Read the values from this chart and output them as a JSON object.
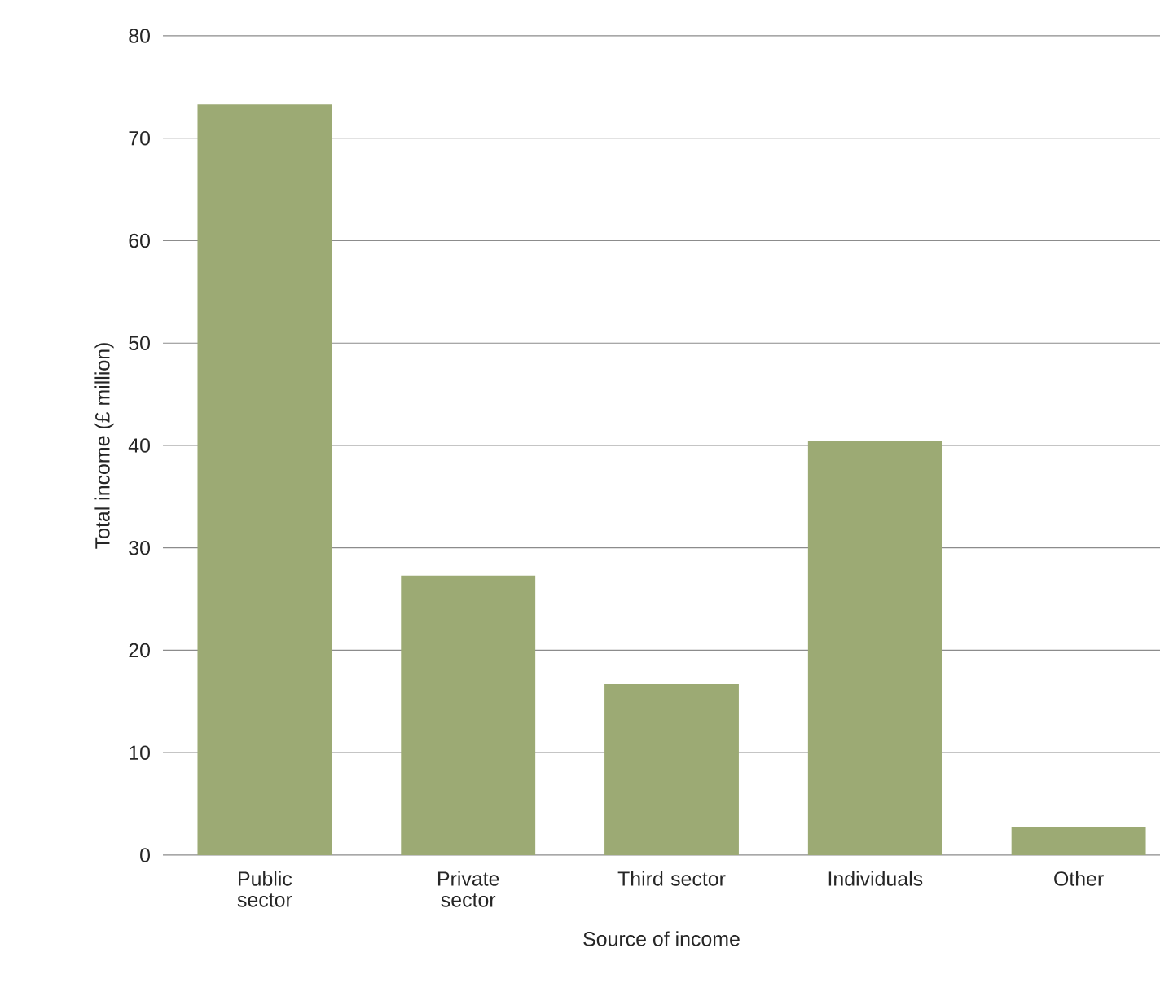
{
  "chart_data": {
    "type": "bar",
    "xlabel": "Source of income",
    "ylabel": "Total income (£ million)",
    "categories": [
      "Public sector",
      "Private sector",
      "Third sector",
      "Individuals",
      "Other"
    ],
    "values": [
      73.3,
      27.3,
      16.7,
      40.4,
      2.7
    ],
    "color": "#9caa74",
    "ylim": [
      0,
      80
    ],
    "yticks": [
      0,
      10,
      20,
      30,
      40,
      50,
      60,
      70,
      80
    ],
    "grid": "y"
  }
}
